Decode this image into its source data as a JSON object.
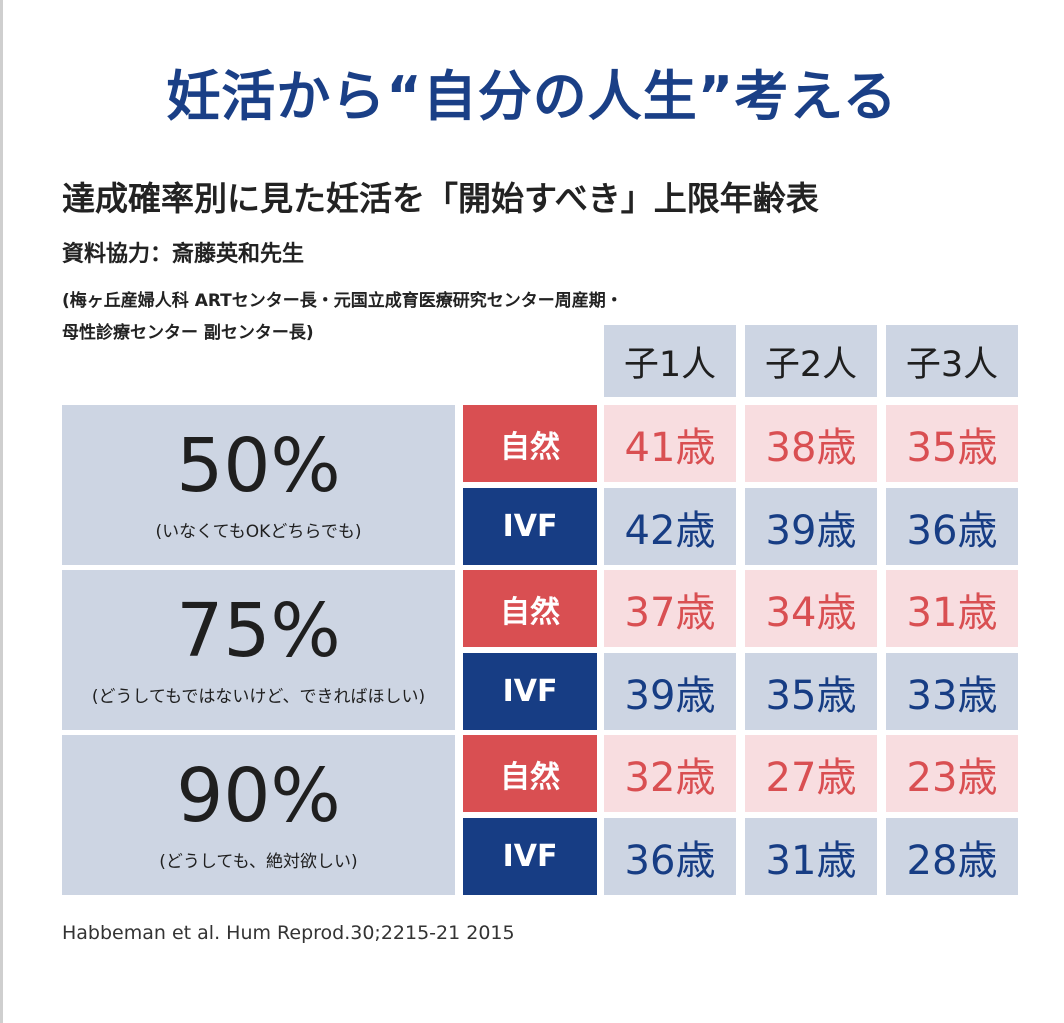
{
  "title": "妊活から“自分の人生”考える",
  "subtitle": "達成確率別に見た妊活を「開始すべき」上限年齢表",
  "source": "資料協力：斎藤英和先生",
  "affiliation_line1": "(梅ヶ丘産婦人科 ARTセンター長・元国立成育医療研究センター周産期・",
  "affiliation_line2": "母性診療センター 副センター長)",
  "citation": "Habbeman et al. Hum Reprod.30;2215-21 2015",
  "colors": {
    "title_blue": "#1a3f86",
    "natural_red": "#d94f52",
    "natural_bg": "#f8dde0",
    "ivf_navy": "#173d84",
    "header_bg": "#cdd5e3"
  },
  "chart_data": {
    "type": "table",
    "columns": [
      "子1人",
      "子2人",
      "子3人"
    ],
    "unit": "歳",
    "rows": [
      {
        "probability": "50%",
        "note": "(いなくてもOKどちらでも)",
        "methods": [
          {
            "method": "自然",
            "values": [
              41,
              38,
              35
            ],
            "labels": [
              "41歳",
              "38歳",
              "35歳"
            ]
          },
          {
            "method": "IVF",
            "values": [
              42,
              39,
              36
            ],
            "labels": [
              "42歳",
              "39歳",
              "36歳"
            ]
          }
        ]
      },
      {
        "probability": "75%",
        "note": "(どうしてもではないけど、できればほしい)",
        "methods": [
          {
            "method": "自然",
            "values": [
              37,
              34,
              31
            ],
            "labels": [
              "37歳",
              "34歳",
              "31歳"
            ]
          },
          {
            "method": "IVF",
            "values": [
              39,
              35,
              33
            ],
            "labels": [
              "39歳",
              "35歳",
              "33歳"
            ]
          }
        ]
      },
      {
        "probability": "90%",
        "note": "(どうしても、絶対欲しい)",
        "methods": [
          {
            "method": "自然",
            "values": [
              32,
              27,
              23
            ],
            "labels": [
              "32歳",
              "27歳",
              "23歳"
            ]
          },
          {
            "method": "IVF",
            "values": [
              36,
              31,
              28
            ],
            "labels": [
              "36歳",
              "31歳",
              "28歳"
            ]
          }
        ]
      }
    ]
  }
}
